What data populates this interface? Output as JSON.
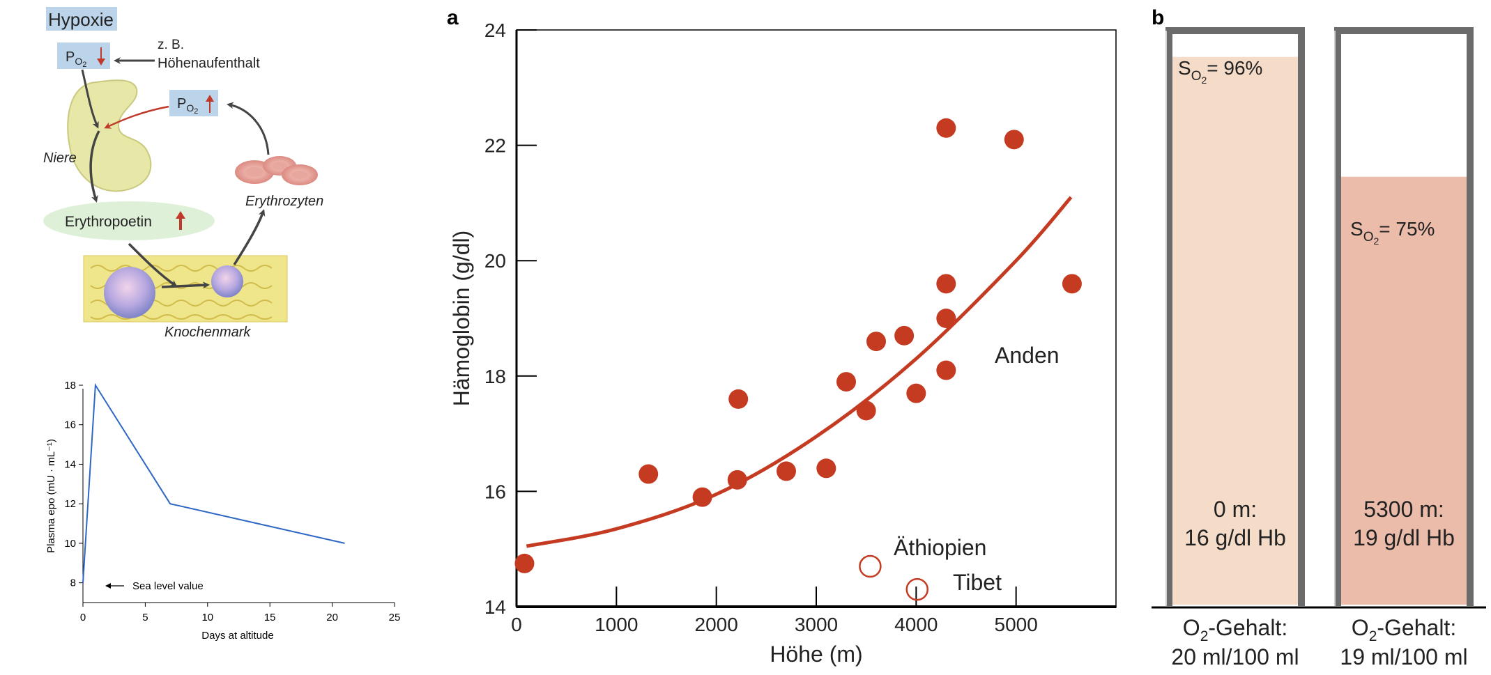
{
  "diagram": {
    "title": "Hypoxie",
    "po2_low": "P",
    "po2_sub": "O",
    "po2_sub2": "2",
    "cause_line1": "z. B.",
    "cause_line2": "Höhenaufenthalt",
    "organ_label": "Niere",
    "hormone_label": "Erythropoetin",
    "cells_label": "Erythrozyten",
    "marrow_label": "Knochenmark",
    "colors": {
      "arrow_red": "#c0392b",
      "box_blue": "#bcd4ea",
      "hormone_green": "#dff0d8"
    }
  },
  "chart_data": [
    {
      "type": "line",
      "xlabel": "Days at altitude",
      "ylabel": "Plasma epo (mU · mL⁻¹)",
      "xlim": [
        0,
        25
      ],
      "ylim": [
        7,
        18
      ],
      "x_ticks": [
        0,
        5,
        10,
        15,
        20,
        25
      ],
      "y_ticks": [
        8,
        10,
        12,
        14,
        16,
        18
      ],
      "series": [
        {
          "x": [
            0,
            1,
            7,
            21
          ],
          "y": [
            8,
            18,
            12,
            10
          ]
        }
      ],
      "annotation": "Sea level value",
      "color": "#2e67c4"
    },
    {
      "type": "scatter",
      "panel_label": "a",
      "xlabel": "Höhe (m)",
      "ylabel": "Hämoglobin (g/dl)",
      "xlim": [
        0,
        6000
      ],
      "ylim": [
        14,
        24
      ],
      "x_ticks": [
        0,
        1000,
        2000,
        3000,
        4000,
        5000
      ],
      "y_ticks": [
        14,
        16,
        18,
        20,
        22,
        24
      ],
      "series": [
        {
          "name": "Anden",
          "style": "filled",
          "x": [
            80,
            1320,
            1860,
            2210,
            2220,
            2700,
            3100,
            3300,
            3500,
            3600,
            3880,
            4000,
            4300,
            4300,
            4300,
            4300,
            4980,
            5560
          ],
          "y": [
            14.75,
            16.3,
            15.9,
            16.2,
            17.6,
            16.35,
            16.4,
            17.9,
            17.4,
            18.6,
            18.7,
            17.7,
            18.1,
            19.0,
            19.6,
            22.3,
            22.1,
            19.6
          ]
        },
        {
          "name": "Äthiopien",
          "style": "open",
          "x": [
            3540
          ],
          "y": [
            14.7
          ]
        },
        {
          "name": "Tibet",
          "style": "open",
          "x": [
            4010
          ],
          "y": [
            14.3
          ]
        }
      ],
      "trend": {
        "x": [
          100,
          1000,
          2000,
          3000,
          4000,
          5000,
          5550
        ],
        "y": [
          15.05,
          15.35,
          15.95,
          16.95,
          18.3,
          20.0,
          21.1
        ]
      },
      "color": "#c43b22"
    },
    {
      "type": "bar",
      "panel_label": "b",
      "categories": [
        "0 m",
        "5300 m"
      ],
      "values": [
        96,
        75
      ],
      "unit": "%",
      "bars": [
        {
          "saturation": "S",
          "saturation_value": "= 96%",
          "caption1": "0 m:",
          "caption2": "16 g/dl Hb",
          "content1": "O",
          "content_sub": "2",
          "content1b": "-Gehalt:",
          "content2": "20 ml/100 ml"
        },
        {
          "saturation": "S",
          "saturation_value": "= 75%",
          "caption1": "5300 m:",
          "caption2": "19 g/dl Hb",
          "content1": "O",
          "content_sub": "2",
          "content1b": "-Gehalt:",
          "content2": "19 ml/100 ml"
        }
      ],
      "colors": [
        "#f5dcc8",
        "#ecbcaa"
      ]
    }
  ]
}
